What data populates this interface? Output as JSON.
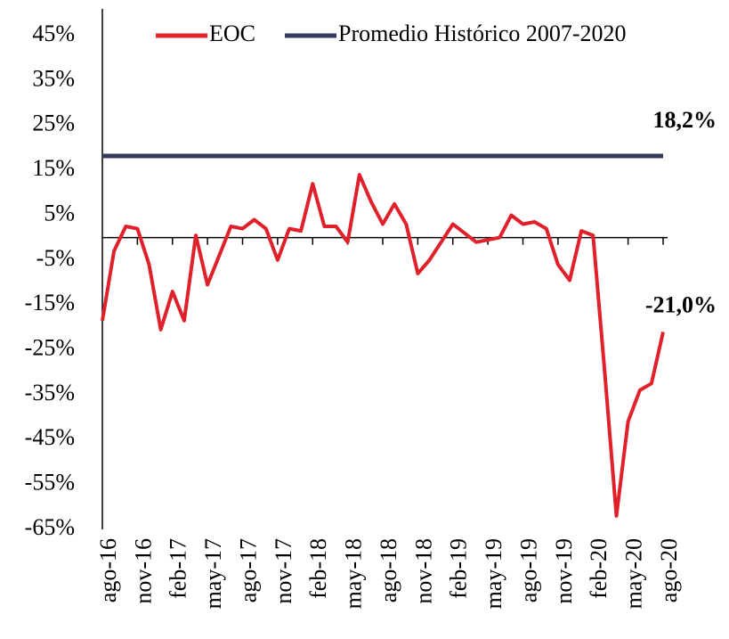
{
  "chart_data": {
    "type": "line",
    "categories": [
      "ago-16",
      null,
      null,
      "nov-16",
      null,
      null,
      "feb-17",
      null,
      null,
      "may-17",
      null,
      null,
      "ago-17",
      null,
      null,
      "nov-17",
      null,
      null,
      "feb-18",
      null,
      null,
      "may-18",
      null,
      null,
      "ago-18",
      null,
      null,
      "nov-18",
      null,
      null,
      "feb-19",
      null,
      null,
      "may-19",
      null,
      null,
      "ago-19",
      null,
      null,
      "nov-19",
      null,
      null,
      "feb-20",
      null,
      null,
      "may-20",
      null,
      null,
      "ago-20"
    ],
    "series": [
      {
        "name": "EOC",
        "color": "#e0202a",
        "values": [
          -18.5,
          -3,
          2.5,
          2,
          -6,
          -20.5,
          -12,
          -18.5,
          0.5,
          -10.5,
          -4,
          2.5,
          2,
          4,
          2,
          -5,
          2,
          1.5,
          12,
          2.5,
          2.5,
          -1,
          14,
          8,
          3,
          7.5,
          3,
          -8,
          -5,
          -1,
          3,
          1,
          -1,
          -0.5,
          0,
          5,
          3,
          3.5,
          2,
          -6,
          -9.5,
          1.5,
          0.5,
          -30,
          -62,
          -41,
          -34,
          -32.5,
          -21
        ],
        "value_labels": [
          null,
          null,
          null,
          null,
          null,
          null,
          null,
          null,
          null,
          null,
          null,
          null,
          null,
          null,
          null,
          null,
          null,
          null,
          null,
          null,
          null,
          null,
          null,
          null,
          null,
          null,
          null,
          null,
          null,
          null,
          null,
          null,
          null,
          null,
          null,
          null,
          null,
          null,
          null,
          null,
          null,
          null,
          null,
          null,
          null,
          null,
          null,
          null,
          "-21,0%"
        ]
      },
      {
        "name": "Promedio Histórico 2007-2020",
        "color": "#333a5c",
        "values": [
          18.2,
          18.2,
          18.2,
          18.2,
          18.2,
          18.2,
          18.2,
          18.2,
          18.2,
          18.2,
          18.2,
          18.2,
          18.2,
          18.2,
          18.2,
          18.2,
          18.2,
          18.2,
          18.2,
          18.2,
          18.2,
          18.2,
          18.2,
          18.2,
          18.2,
          18.2,
          18.2,
          18.2,
          18.2,
          18.2,
          18.2,
          18.2,
          18.2,
          18.2,
          18.2,
          18.2,
          18.2,
          18.2,
          18.2,
          18.2,
          18.2,
          18.2,
          18.2,
          18.2,
          18.2,
          18.2,
          18.2,
          18.2,
          18.2
        ],
        "value_labels": [
          null,
          null,
          null,
          null,
          null,
          null,
          null,
          null,
          null,
          null,
          null,
          null,
          null,
          null,
          null,
          null,
          null,
          null,
          null,
          null,
          null,
          null,
          null,
          null,
          null,
          null,
          null,
          null,
          null,
          null,
          null,
          null,
          null,
          null,
          null,
          null,
          null,
          null,
          null,
          null,
          null,
          null,
          null,
          null,
          null,
          null,
          null,
          null,
          "18,2%"
        ]
      }
    ],
    "ylim": [
      -65,
      45
    ],
    "yticks": [
      {
        "value": -65,
        "label": "-65%"
      },
      {
        "value": -55,
        "label": "-55%"
      },
      {
        "value": -45,
        "label": "-45%"
      },
      {
        "value": -35,
        "label": "-35%"
      },
      {
        "value": -25,
        "label": "-25%"
      },
      {
        "value": -15,
        "label": "-15%"
      },
      {
        "value": -5,
        "label": "-5%"
      },
      {
        "value": 5,
        "label": "5%"
      },
      {
        "value": 15,
        "label": "15%"
      },
      {
        "value": 25,
        "label": "25%"
      },
      {
        "value": 35,
        "label": "35%"
      },
      {
        "value": 45,
        "label": "45%"
      }
    ],
    "grid": false,
    "legend": "top"
  }
}
